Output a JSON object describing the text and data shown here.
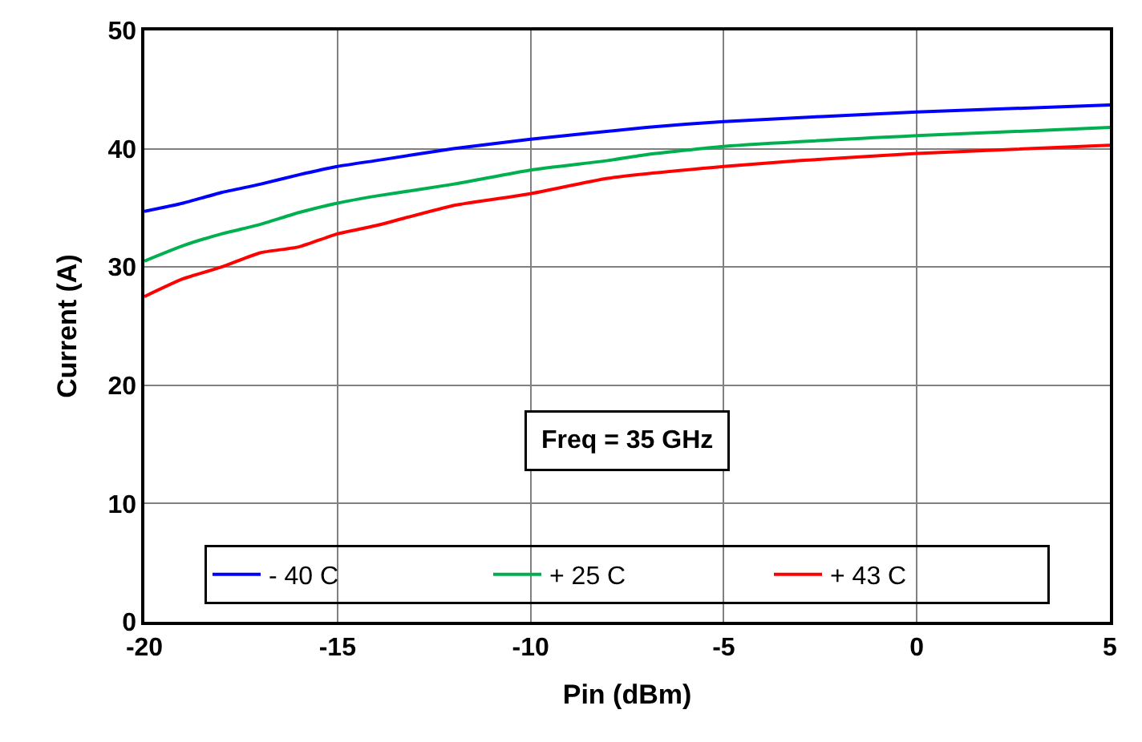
{
  "chart_data": {
    "type": "line",
    "xlabel": "Pin (dBm)",
    "ylabel": "Current (A)",
    "xlim": [
      -20,
      5
    ],
    "xticks": [
      -20,
      -15,
      -10,
      -5,
      0,
      5
    ],
    "ylim": [
      0,
      50
    ],
    "yticks": [
      0,
      10,
      20,
      30,
      40,
      50
    ],
    "grid": true,
    "legend": "bottom",
    "marker": "none",
    "line_style": "solid",
    "annotations": [
      "Freq = 35 GHz"
    ],
    "series": [
      {
        "name": "- 40 C",
        "color": "#0000ff",
        "x": [
          -20,
          -19,
          -18,
          -17,
          -16,
          -15,
          -14,
          -12,
          -10,
          -7,
          -5,
          0,
          5
        ],
        "values": [
          34.7,
          35.4,
          36.3,
          37.0,
          37.8,
          38.5,
          39.0,
          40.0,
          40.8,
          41.8,
          42.3,
          43.1,
          43.7
        ]
      },
      {
        "name": "+ 25 C",
        "color": "#00b050",
        "x": [
          -20,
          -19,
          -18,
          -17,
          -16,
          -15,
          -14,
          -12,
          -10,
          -8,
          -7,
          -5,
          0,
          5
        ],
        "values": [
          30.5,
          31.8,
          32.8,
          33.6,
          34.6,
          35.4,
          36.0,
          37.0,
          38.2,
          39.0,
          39.5,
          40.2,
          41.1,
          41.8
        ]
      },
      {
        "name": "+ 43 C",
        "color": "#ff0000",
        "x": [
          -20,
          -19,
          -18,
          -17,
          -16,
          -15,
          -14,
          -12,
          -10,
          -8,
          -5,
          -3,
          0,
          5
        ],
        "values": [
          27.5,
          29.0,
          30.0,
          31.2,
          31.7,
          32.8,
          33.5,
          35.2,
          36.2,
          37.5,
          38.5,
          39.0,
          39.6,
          40.3
        ]
      }
    ]
  }
}
